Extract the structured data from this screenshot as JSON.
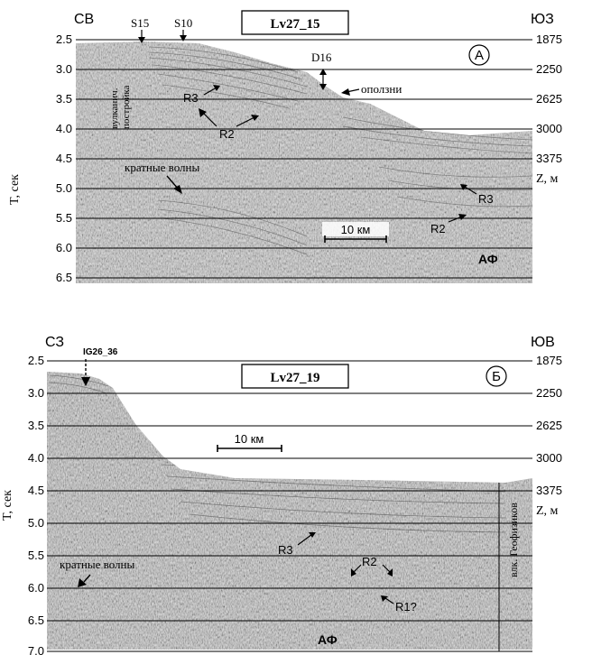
{
  "panel_a": {
    "corner_left": "СВ",
    "corner_right": "ЮЗ",
    "title": "Lv27_15",
    "letter": "А",
    "t_ticks": [
      "2.5",
      "3.0",
      "3.5",
      "4.0",
      "4.5",
      "5.0",
      "5.5",
      "6.0",
      "6.5"
    ],
    "z_ticks": [
      "1875",
      "2250",
      "2625",
      "3000",
      "3375"
    ],
    "z_label": "Z, м",
    "t_label": "T, сек",
    "scale_label": "10 км",
    "annotations": {
      "s15": "S15",
      "s10": "S10",
      "d16": "D16",
      "volcanic_line1": "вулканич.",
      "volcanic_line2": "постройка",
      "landslides": "оползни",
      "r3_left": "R3",
      "r2_left": "R2",
      "multiples": "кратные волны",
      "r3_right": "R3",
      "r2_right": "R2",
      "af": "АФ"
    }
  },
  "panel_b": {
    "corner_left": "СЗ",
    "corner_right": "ЮВ",
    "title": "Lv27_19",
    "letter": "Б",
    "t_ticks": [
      "2.5",
      "3.0",
      "3.5",
      "4.0",
      "4.5",
      "5.0",
      "5.5",
      "6.0",
      "6.5",
      "7.0"
    ],
    "z_ticks": [
      "1875",
      "2250",
      "2625",
      "3000",
      "3375"
    ],
    "z_label": "Z, м",
    "t_label": "T, сек",
    "scale_label": "10 км",
    "annotations": {
      "station": "IG26_36",
      "r3": "R3",
      "r2": "R2",
      "r1": "R1?",
      "multiples": "кратные волны",
      "volcano": "влк. Геофизиков",
      "af": "АФ"
    }
  }
}
